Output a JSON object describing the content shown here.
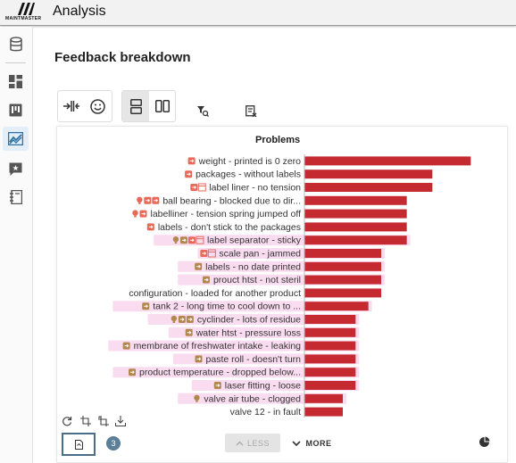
{
  "app": {
    "logo_text": "MAINTMASTER",
    "title": "Analysis"
  },
  "sidebar": {
    "items": [
      {
        "name": "database-icon",
        "active": false
      },
      {
        "name": "dashboard-icon",
        "active": false
      },
      {
        "name": "kanban-icon",
        "active": false
      },
      {
        "name": "analysis-chart-icon",
        "active": true
      },
      {
        "name": "feedback-icon",
        "active": false
      },
      {
        "name": "notebook-icon",
        "active": false
      }
    ]
  },
  "page": {
    "title": "Feedback breakdown"
  },
  "toolbar": {
    "icons": [
      "compare-icon",
      "smiley-icon",
      "rows-layout-icon",
      "columns-layout-icon",
      "filter-search-icon",
      "clear-filter-icon"
    ]
  },
  "colors": {
    "bar": "#c62a31",
    "bar_highlight": "#fadcf0",
    "tag_orange": "#e8695a",
    "tag_olive": "#b3884e",
    "accent": "#5b7e99"
  },
  "chart_data": {
    "type": "bar",
    "orientation": "horizontal",
    "title": "Problems",
    "xlim": [
      0,
      15
    ],
    "xticks": [
      "0",
      "3",
      "6",
      "9",
      "12",
      "15"
    ],
    "categories": [
      "weight - printed is 0 zero",
      "packages - without labels",
      "label liner - no tension",
      "ball bearing - blocked due to dir...",
      "labelliner - tension spring jumped off",
      "labels - don't stick to the packages",
      "label separator - sticky",
      "scale pan - jammed",
      "labels - no date printed",
      "prouct htst - not steril",
      "configuration - loaded for another product",
      "tank 2 - long time to cool down to ...",
      "cyclinder - lots of residue",
      "water htst - pressure loss",
      "membrane of freshwater intake - leaking",
      "paste roll - doesn't turn",
      "product temperature - dropped below...",
      "laser fitting - loose",
      "valve air tube - clogged",
      "valve 12 - in fault"
    ],
    "values": [
      13,
      10,
      10,
      8,
      8,
      8,
      8,
      6,
      6,
      6,
      6,
      5,
      4,
      4,
      4,
      4,
      4,
      4,
      3,
      3
    ],
    "icons": [
      [
        "tag-orange"
      ],
      [
        "tag-orange"
      ],
      [
        "tag-orange",
        "calendar-icon"
      ],
      [
        "bulb-icon",
        "tag-orange",
        "tag-orange"
      ],
      [
        "bulb-icon",
        "tag-orange"
      ],
      [
        "tag-orange"
      ],
      [
        "bulb-icon",
        "tag-olive",
        "tag-orange",
        "calendar-icon"
      ],
      [
        "tag-orange",
        "calendar-icon"
      ],
      [
        "tag-olive"
      ],
      [
        "tag-olive"
      ],
      [],
      [
        "tag-olive"
      ],
      [
        "bulb-icon",
        "tag-olive",
        "tag-olive"
      ],
      [
        "tag-olive"
      ],
      [
        "tag-olive"
      ],
      [
        "tag-olive"
      ],
      [
        "tag-olive"
      ],
      [
        "tag-olive"
      ],
      [
        "bulb-icon"
      ],
      []
    ],
    "highlighted": [
      false,
      false,
      false,
      false,
      false,
      false,
      true,
      true,
      true,
      true,
      false,
      true,
      true,
      true,
      true,
      true,
      true,
      true,
      true,
      false
    ]
  },
  "footer": {
    "count_badge": "3",
    "less_label": "LESS",
    "more_label": "MORE"
  }
}
